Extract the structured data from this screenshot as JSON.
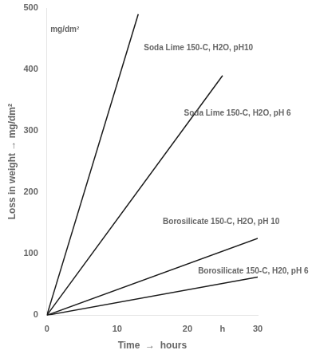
{
  "chart_data": {
    "type": "line",
    "series": [
      {
        "x": [
          0,
          13
        ],
        "values": [
          0,
          490
        ],
        "color": "#1a1a1a"
      },
      {
        "x": [
          0,
          25
        ],
        "values": [
          0,
          390
        ],
        "color": "#1a1a1a"
      },
      {
        "x": [
          0,
          30
        ],
        "values": [
          0,
          125
        ],
        "color": "#1a1a1a"
      },
      {
        "x": [
          0,
          30
        ],
        "values": [
          0,
          62
        ],
        "color": "#1a1a1a"
      }
    ],
    "annotations": [
      {
        "text": "Soda Lime 150-C, H2O, pH10",
        "x": 13.8,
        "y": 435
      },
      {
        "text": "Soda Lime 150-C, H2O, pH 6",
        "x": 19.5,
        "y": 328
      },
      {
        "text": "Borosilicate 150-C, H2O, pH 10",
        "x": 16.5,
        "y": 152
      },
      {
        "text": "Borosilicate 150-C, H20, pH 6",
        "x": 21.5,
        "y": 72
      },
      {
        "text": "mg/dm²",
        "x": 0.5,
        "y": 465
      }
    ],
    "xlabel": "Time  →  hours",
    "ylabel": "Loss in weight → mg/dm²",
    "xlim": [
      0,
      30
    ],
    "ylim": [
      0,
      500
    ],
    "xticks": [
      0,
      10,
      20,
      {
        "value": 25,
        "label": "h"
      },
      30
    ],
    "yticks": [
      0,
      100,
      200,
      300,
      400,
      500
    ],
    "grid": false
  }
}
